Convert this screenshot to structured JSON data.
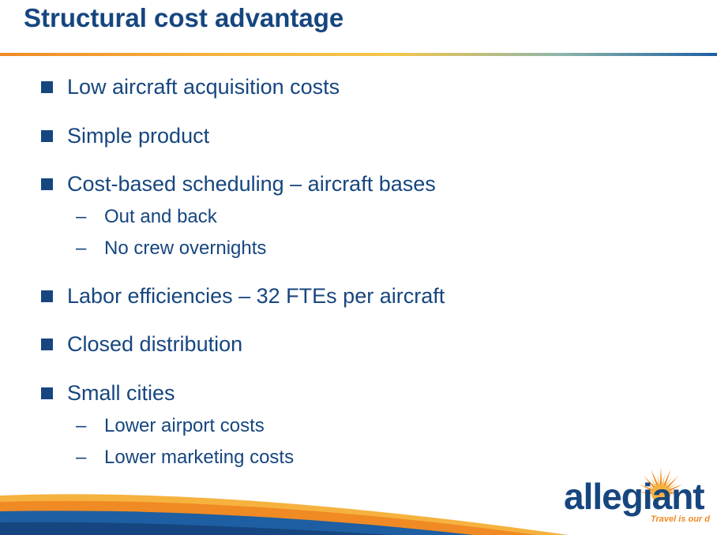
{
  "slide": {
    "title": "Structural cost advantage"
  },
  "bullets": [
    {
      "text": "Low aircraft acquisition costs"
    },
    {
      "text": "Simple product"
    },
    {
      "text": "Cost-based scheduling – aircraft bases",
      "subitems": [
        "Out and back",
        "No crew overnights"
      ]
    },
    {
      "text": "Labor efficiencies – 32 FTEs per aircraft"
    },
    {
      "text": "Closed distribution"
    },
    {
      "text": "Small cities",
      "subitems": [
        "Lower airport costs",
        "Lower marketing costs"
      ]
    }
  ],
  "dash_glyph": "–",
  "logo": {
    "wordmark": "allegiant",
    "tagline": "Travel is our d"
  },
  "colors": {
    "primary_blue": "#16467f",
    "accent_orange": "#f08a24",
    "accent_yellow": "#f6b23e"
  }
}
